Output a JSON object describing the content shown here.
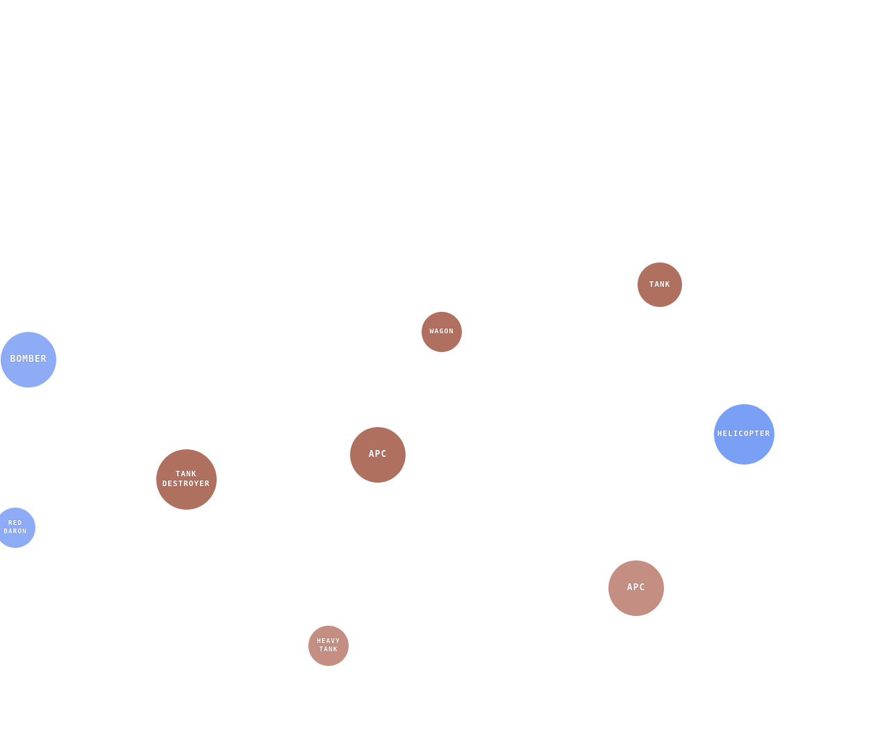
{
  "colors": {
    "background": "#ffffff",
    "enemy": "#b07060",
    "enemy_faded": "#c48e82",
    "air": "#7aa0f5",
    "air_faded": "#8eacf5"
  },
  "units": [
    {
      "name": "tank",
      "line1": "TANK",
      "line2": "",
      "color": "#b07060"
    },
    {
      "name": "wagon",
      "line1": "WAGON",
      "line2": "",
      "color": "#b07060"
    },
    {
      "name": "bomber",
      "line1": "BOMBER",
      "line2": "",
      "color": "#8eacf5"
    },
    {
      "name": "helicopter",
      "line1": "HELICOPTER",
      "line2": "",
      "color": "#7aa0f5"
    },
    {
      "name": "apc",
      "line1": "APC",
      "line2": "",
      "color": "#b07060"
    },
    {
      "name": "tank-destroyer",
      "line1": "TANK",
      "line2": "DESTROYER",
      "color": "#b07060"
    },
    {
      "name": "red-baron",
      "line1": "RED",
      "line2": "BARON",
      "color": "#8eacf5"
    },
    {
      "name": "apc-2",
      "line1": "APC",
      "line2": "",
      "color": "#c48e82"
    },
    {
      "name": "heavy-tank",
      "line1": "HEAVY",
      "line2": "TANK",
      "color": "#c48e82"
    }
  ]
}
